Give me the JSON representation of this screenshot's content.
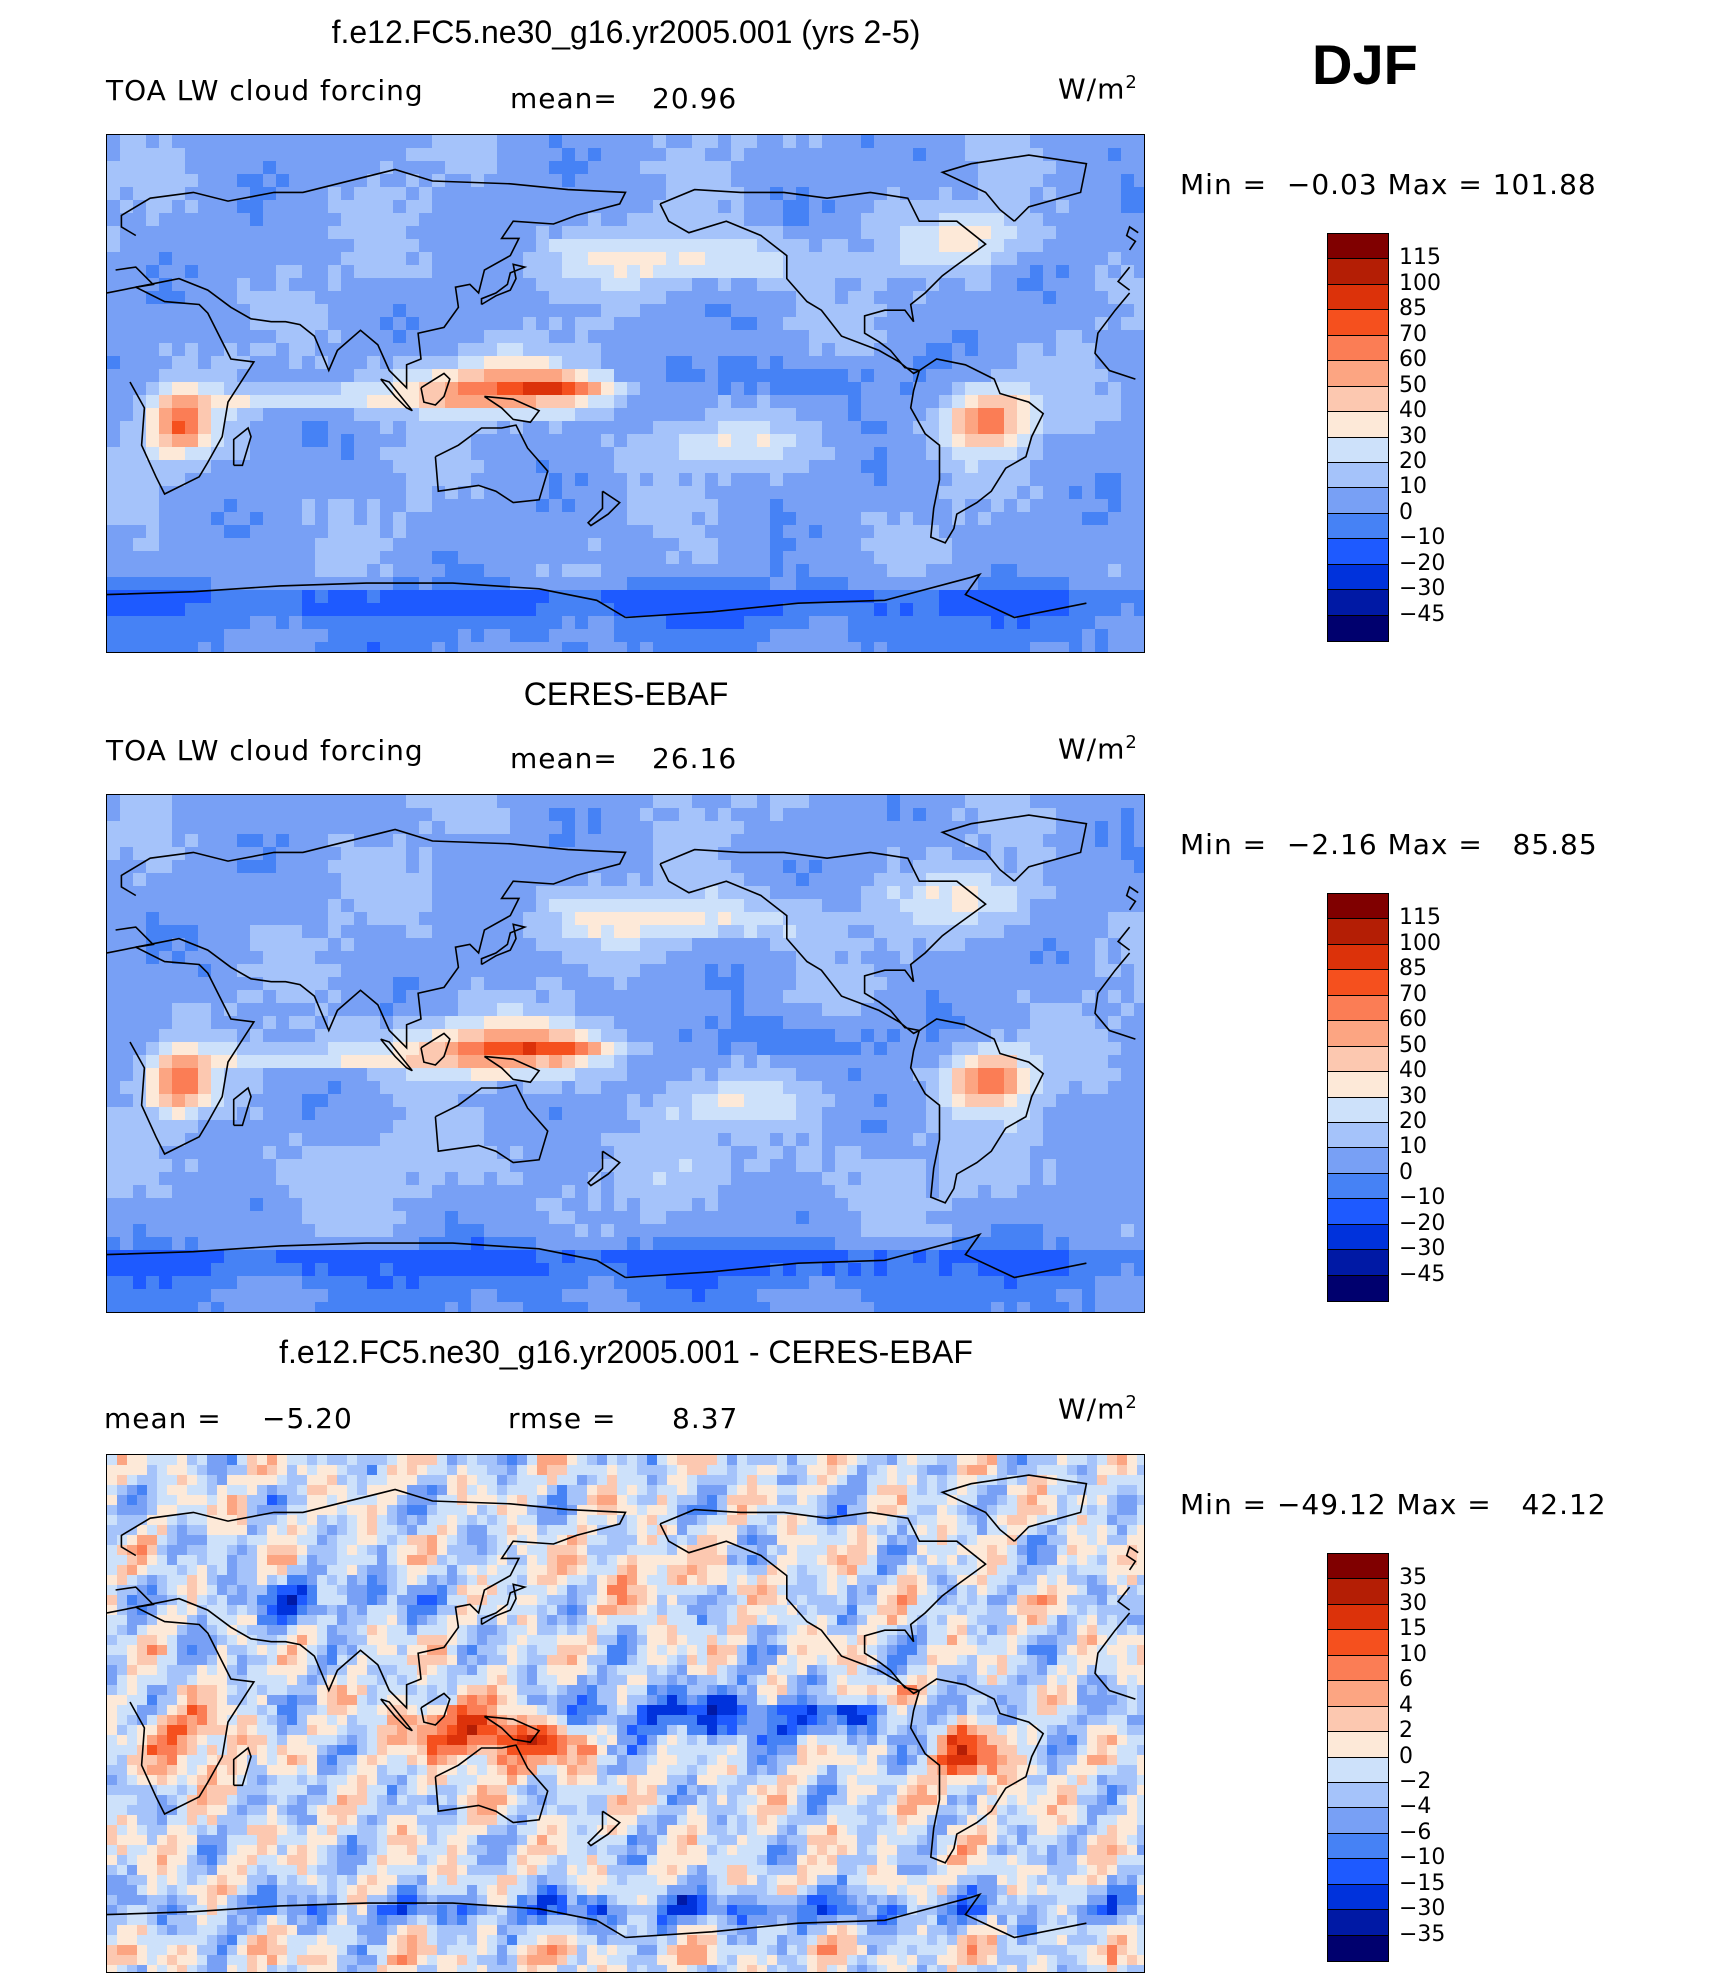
{
  "season": "DJF",
  "units": {
    "base": "W/m",
    "exp": "2"
  },
  "colors": {
    "levels": [
      "#00006e",
      "#0019a5",
      "#0032dc",
      "#1e5aff",
      "#4682f5",
      "#78a0f5",
      "#a5c3fa",
      "#cde1fa",
      "#fde9d8",
      "#fcc8b0",
      "#fca582",
      "#fb7d55",
      "#f5501e",
      "#dc320a",
      "#b41e05",
      "#800000"
    ],
    "coast": "#000000"
  },
  "chart_data": [
    {
      "type": "heatmap",
      "title": "f.e12.FC5.ne30_g16.yr2005.001 (yrs 2-5)",
      "subtitle_left": "TOA LW cloud forcing",
      "stat1": {
        "label": "mean=",
        "value": "20.96"
      },
      "units": "W/m2",
      "range": {
        "min_label": "Min =",
        "min": "−0.03",
        "max_label": "Max =",
        "max": "101.88"
      },
      "colorbar_levels": [
        "115",
        "100",
        "85",
        "70",
        "60",
        "50",
        "40",
        "30",
        "20",
        "10",
        "0",
        "−10",
        "−20",
        "−30",
        "−45"
      ],
      "variant": "model"
    },
    {
      "type": "heatmap",
      "title": "CERES-EBAF",
      "subtitle_left": "TOA LW cloud forcing",
      "stat1": {
        "label": "mean=",
        "value": "26.16"
      },
      "units": "W/m2",
      "range": {
        "min_label": "Min =",
        "min": "−2.16",
        "max_label": "Max =",
        "max": "85.85"
      },
      "colorbar_levels": [
        "115",
        "100",
        "85",
        "70",
        "60",
        "50",
        "40",
        "30",
        "20",
        "10",
        "0",
        "−10",
        "−20",
        "−30",
        "−45"
      ],
      "variant": "obs"
    },
    {
      "type": "heatmap",
      "title": "f.e12.FC5.ne30_g16.yr2005.001 - CERES-EBAF",
      "stat1": {
        "label": "mean =",
        "value": "−5.20"
      },
      "stat2": {
        "label": "rmse =",
        "value": "8.37"
      },
      "units": "W/m2",
      "range": {
        "min_label": "Min =",
        "min": "−49.12",
        "max_label": "Max =",
        "max": "42.12"
      },
      "colorbar_levels": [
        "35",
        "30",
        "15",
        "10",
        "6",
        "4",
        "2",
        "0",
        "−2",
        "−4",
        "−6",
        "−10",
        "−15",
        "−30",
        "−35"
      ],
      "variant": "diff"
    }
  ]
}
